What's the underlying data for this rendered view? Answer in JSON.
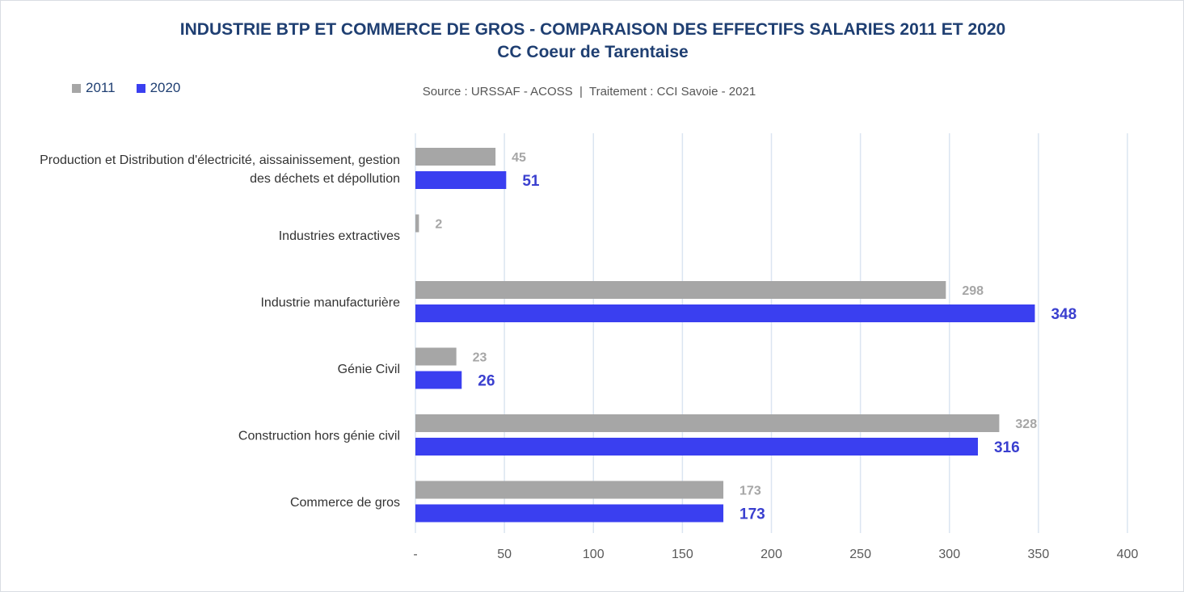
{
  "chart_data": {
    "type": "bar",
    "orientation": "horizontal",
    "title": "INDUSTRIE BTP ET COMMERCE DE GROS - COMPARAISON DES EFFECTIFS SALARIES 2011 ET 2020",
    "subtitle": "CC Coeur de Tarentaise",
    "source": "Source : URSSAF - ACOSS  |  Traitement : CCI Savoie - 2021",
    "categories": [
      [
        "Production et Distribution d'électricité, aissainissement, gestion",
        "des déchets et dépollution"
      ],
      [
        "Industries extractives"
      ],
      [
        "Industrie manufacturière"
      ],
      [
        "Génie Civil"
      ],
      [
        "Construction hors génie civil"
      ],
      [
        "Commerce de gros"
      ]
    ],
    "series": [
      {
        "name": "2011",
        "color": "#a6a6a6",
        "values": [
          45,
          2,
          298,
          23,
          328,
          173
        ]
      },
      {
        "name": "2020",
        "color": "#3a3ff0",
        "values": [
          51,
          null,
          348,
          26,
          316,
          173
        ]
      }
    ],
    "xlim": [
      0,
      400
    ],
    "xticks": [
      0,
      50,
      100,
      150,
      200,
      250,
      300,
      350,
      400
    ],
    "xtick_labels": [
      "-",
      "50",
      "100",
      "150",
      "200",
      "250",
      "300",
      "350",
      "400"
    ],
    "grid": "vertical",
    "legend_position": "top-left"
  },
  "legend": {
    "items": [
      {
        "label": "2011",
        "color": "#a6a6a6"
      },
      {
        "label": "2020",
        "color": "#3a3ff0"
      }
    ]
  },
  "colors": {
    "title": "#1f3f72",
    "grid": "#dbe5f1",
    "label_2011": "#a6a6a6",
    "label_2020": "#3a3fcf"
  }
}
